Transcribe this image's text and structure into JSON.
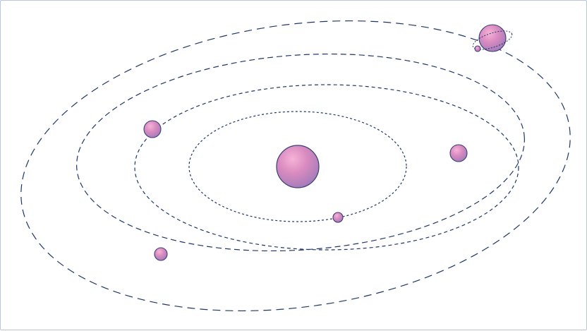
{
  "colors": {
    "orbit_stroke": "#1f3768",
    "body_stroke": "#3a3f7a",
    "body_highlight": "#f7b3d8",
    "body_mid": "#d98bc0",
    "body_shadow": "#a07ab8",
    "frame_border": "#b9c6df",
    "background": "#ffffff"
  },
  "diagram": {
    "type": "orbital-system",
    "central_body": "sun",
    "orbit_count": 4,
    "planet_count": 6,
    "has_ringed_planet": true,
    "has_moon": true
  }
}
